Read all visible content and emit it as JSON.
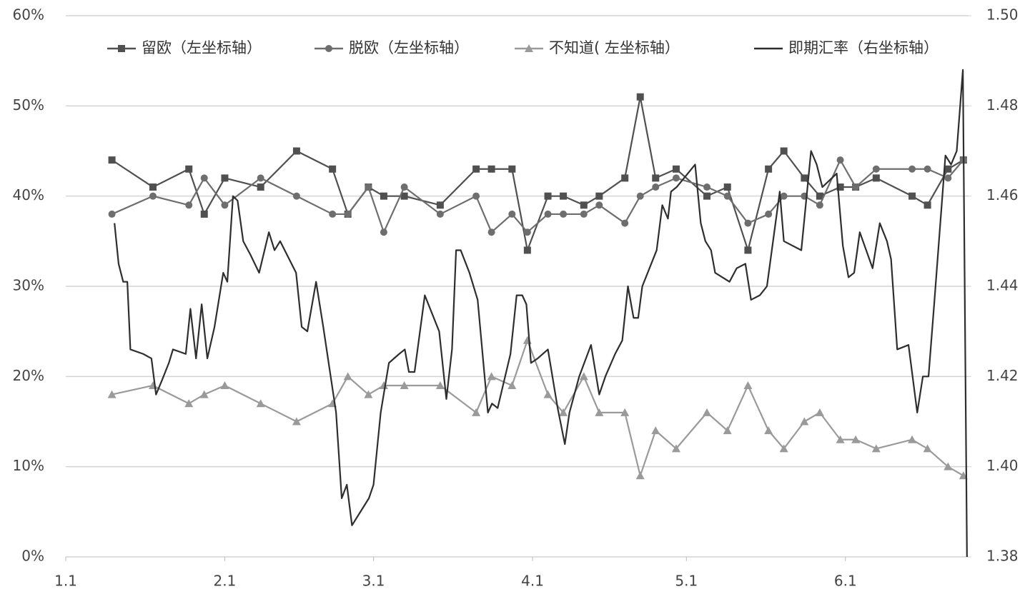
{
  "chart_data": {
    "type": "line",
    "xticks": [
      {
        "value": 0,
        "label": "1.1"
      },
      {
        "value": 31,
        "label": "2.1"
      },
      {
        "value": 60,
        "label": "3.1"
      },
      {
        "value": 91,
        "label": "4.1"
      },
      {
        "value": 121,
        "label": "5.1"
      },
      {
        "value": 152,
        "label": "6.1"
      }
    ],
    "xlim": [
      0,
      176
    ],
    "ylim": [
      0,
      60
    ],
    "yticks": [
      {
        "value": 0,
        "label": "0%"
      },
      {
        "value": 10,
        "label": "10%"
      },
      {
        "value": 20,
        "label": "20%"
      },
      {
        "value": 30,
        "label": "30%"
      },
      {
        "value": 40,
        "label": "40%"
      },
      {
        "value": 50,
        "label": "50%"
      },
      {
        "value": 60,
        "label": "60%"
      }
    ],
    "y2lim": [
      1.38,
      1.5
    ],
    "y2ticks": [
      {
        "value": 1.38,
        "label": "1.38"
      },
      {
        "value": 1.4,
        "label": "1.40"
      },
      {
        "value": 1.42,
        "label": "1.42"
      },
      {
        "value": 1.44,
        "label": "1.44"
      },
      {
        "value": 1.46,
        "label": "1.46"
      },
      {
        "value": 1.48,
        "label": "1.48"
      },
      {
        "value": 1.5,
        "label": "1.50"
      }
    ],
    "grid": true,
    "legend": "top",
    "series": [
      {
        "name": "留欧（左坐标轴）",
        "color": "#505050",
        "marker": "square",
        "x": [
          9,
          17,
          24,
          27,
          31,
          38,
          45,
          52,
          55,
          59,
          62,
          66,
          73,
          80,
          83,
          87,
          90,
          94,
          97,
          101,
          104,
          109,
          112,
          115,
          119,
          125,
          129,
          133,
          137,
          140,
          144,
          147,
          151,
          154,
          158,
          165,
          168,
          172,
          175
        ],
        "values": [
          44,
          41,
          43,
          38,
          42,
          41,
          45,
          43,
          38,
          41,
          40,
          40,
          39,
          43,
          43,
          43,
          34,
          40,
          40,
          39,
          40,
          42,
          51,
          42,
          43,
          40,
          41,
          34,
          43,
          45,
          42,
          40,
          41,
          41,
          42,
          40,
          39,
          43,
          44
        ]
      },
      {
        "name": "脱欧（左坐标轴）",
        "color": "#6e6e6e",
        "marker": "circle",
        "x": [
          9,
          17,
          24,
          27,
          31,
          38,
          45,
          52,
          55,
          59,
          62,
          66,
          73,
          80,
          83,
          87,
          90,
          94,
          97,
          101,
          104,
          109,
          112,
          115,
          119,
          125,
          129,
          133,
          137,
          140,
          144,
          147,
          151,
          154,
          158,
          165,
          168,
          172,
          175
        ],
        "values": [
          38,
          40,
          39,
          42,
          39,
          42,
          40,
          38,
          38,
          41,
          36,
          41,
          38,
          40,
          36,
          38,
          36,
          38,
          38,
          38,
          39,
          37,
          40,
          41,
          42,
          41,
          40,
          37,
          38,
          40,
          40,
          39,
          44,
          41,
          43,
          43,
          43,
          42,
          44
        ]
      },
      {
        "name": "不知道( 左坐标轴）",
        "color": "#9a9a9a",
        "marker": "triangle",
        "x": [
          9,
          17,
          24,
          27,
          31,
          38,
          45,
          52,
          55,
          59,
          62,
          66,
          73,
          80,
          83,
          87,
          90,
          94,
          97,
          101,
          104,
          109,
          112,
          115,
          119,
          125,
          129,
          133,
          137,
          140,
          144,
          147,
          151,
          154,
          158,
          165,
          168,
          172,
          175
        ],
        "values": [
          18,
          19,
          17,
          18,
          19,
          17,
          15,
          17,
          20,
          18,
          19,
          19,
          19,
          16,
          20,
          19,
          24,
          18,
          16,
          20,
          16,
          16,
          9,
          14,
          12,
          16,
          14,
          19,
          14,
          12,
          15,
          16,
          13,
          13,
          12,
          13,
          12,
          10,
          9
        ]
      },
      {
        "name": "即期汇率（右坐标轴）",
        "color": "#2e2e2e",
        "marker": "none",
        "axis": "y2",
        "x": [
          9.5,
          10.3,
          11.2,
          12.0,
          12.6,
          15.1,
          16.7,
          17.6,
          18.7,
          20.1,
          20.9,
          23.4,
          24.3,
          25.4,
          26.5,
          27.6,
          29.0,
          30.7,
          31.5,
          32.6,
          33.5,
          34.6,
          36.0,
          37.7,
          39.6,
          40.7,
          41.8,
          44.9,
          46.0,
          47.1,
          48.8,
          50.2,
          52.7,
          53.8,
          54.8,
          55.8,
          58.0,
          59.1,
          60.0,
          61.4,
          63.0,
          65.0,
          66.1,
          66.9,
          68.0,
          70.0,
          72.8,
          74.2,
          75.3,
          76.1,
          77.0,
          78.7,
          80.3,
          82.3,
          83.1,
          84.2,
          86.7,
          87.9,
          89.0,
          89.8,
          90.7,
          92.0,
          94.0,
          95.9,
          97.3,
          98.2,
          100.1,
          102.4,
          104.0,
          105.2,
          107.1,
          108.5,
          109.6,
          110.7,
          111.6,
          112.4,
          115.2,
          116.3,
          117.4,
          118.0,
          119.1,
          122.7,
          123.8,
          124.7,
          125.8,
          126.6,
          129.4,
          130.8,
          132.5,
          133.6,
          135.3,
          136.7,
          139.2,
          140.0,
          143.4,
          145.3,
          146.4,
          147.5,
          150.3,
          151.5,
          152.6,
          153.7,
          154.8,
          157.3,
          158.7,
          160.1,
          160.9,
          162.1,
          164.3,
          166.0,
          167.1,
          168.2,
          169.3,
          171.5,
          172.6,
          173.7,
          174.9,
          175.7
        ],
        "values": [
          1.454,
          1.445,
          1.441,
          1.441,
          1.426,
          1.425,
          1.424,
          1.416,
          1.419,
          1.423,
          1.426,
          1.425,
          1.435,
          1.424,
          1.436,
          1.424,
          1.431,
          1.443,
          1.441,
          1.46,
          1.459,
          1.45,
          1.447,
          1.443,
          1.452,
          1.448,
          1.45,
          1.443,
          1.431,
          1.43,
          1.441,
          1.431,
          1.412,
          1.393,
          1.396,
          1.387,
          1.391,
          1.393,
          1.396,
          1.412,
          1.423,
          1.425,
          1.426,
          1.421,
          1.421,
          1.438,
          1.43,
          1.415,
          1.426,
          1.448,
          1.448,
          1.443,
          1.437,
          1.412,
          1.414,
          1.413,
          1.425,
          1.438,
          1.438,
          1.436,
          1.423,
          1.424,
          1.426,
          1.413,
          1.405,
          1.412,
          1.42,
          1.427,
          1.416,
          1.42,
          1.425,
          1.428,
          1.44,
          1.433,
          1.433,
          1.44,
          1.448,
          1.458,
          1.455,
          1.461,
          1.462,
          1.467,
          1.454,
          1.45,
          1.448,
          1.443,
          1.441,
          1.444,
          1.445,
          1.437,
          1.438,
          1.44,
          1.461,
          1.45,
          1.448,
          1.47,
          1.467,
          1.462,
          1.465,
          1.449,
          1.442,
          1.443,
          1.452,
          1.444,
          1.454,
          1.45,
          1.446,
          1.426,
          1.427,
          1.412,
          1.42,
          1.42,
          1.436,
          1.469,
          1.467,
          1.47,
          1.488,
          1.38
        ]
      }
    ]
  }
}
